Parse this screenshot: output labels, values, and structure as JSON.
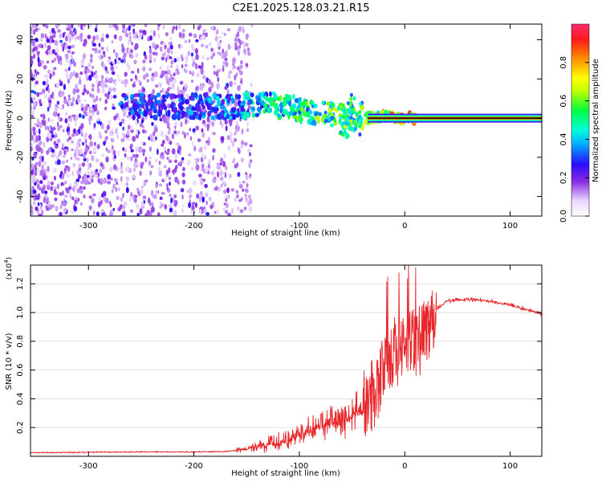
{
  "title": "C2E1.2025.128.03.21.R15",
  "chart_data": [
    {
      "type": "heatmap",
      "title": "",
      "xlabel": "Height of straight line (km)",
      "ylabel": "Frequency (Hz)",
      "xlim": [
        -355,
        130
      ],
      "ylim": [
        -50,
        48
      ],
      "x_ticks": [
        -300,
        -200,
        -100,
        0,
        100
      ],
      "y_ticks": [
        -40,
        -20,
        0,
        20,
        40
      ],
      "x_tick_labels": [
        "-300",
        "-200",
        "-100",
        "0",
        "100"
      ],
      "y_tick_labels": [
        "-40",
        "-20",
        "0",
        "20",
        "40"
      ],
      "colorbar": {
        "label": "Normalized spectral amplitude",
        "range": [
          0,
          1
        ],
        "ticks": [
          0.0,
          0.2,
          0.4,
          0.6,
          0.8
        ],
        "tick_labels": [
          "0.0",
          "0.2",
          "0.4",
          "0.6",
          "0.8"
        ]
      },
      "signal_track": [
        {
          "x": -270,
          "freq": 6,
          "amp": 0.35
        },
        {
          "x": -240,
          "freq": 6,
          "amp": 0.3
        },
        {
          "x": -200,
          "freq": 6,
          "amp": 0.35
        },
        {
          "x": -160,
          "freq": 6,
          "amp": 0.4
        },
        {
          "x": -130,
          "freq": 7,
          "amp": 0.5
        },
        {
          "x": -110,
          "freq": 6,
          "amp": 0.55
        },
        {
          "x": -90,
          "freq": 3,
          "amp": 0.55
        },
        {
          "x": -70,
          "freq": 2,
          "amp": 0.6
        },
        {
          "x": -50,
          "freq": 0,
          "amp": 0.6
        },
        {
          "x": -35,
          "freq": 0,
          "amp": 0.65
        },
        {
          "x": -20,
          "freq": 1,
          "amp": 0.85
        },
        {
          "x": 0,
          "freq": 0,
          "amp": 0.9
        },
        {
          "x": 130,
          "freq": 0,
          "amp": 0.95
        }
      ]
    },
    {
      "type": "line",
      "title": "",
      "xlabel": "Height of straight line (km)",
      "ylabel": "SNR (10 * v/v)",
      "scale_label": "(x10",
      "scale_exponent": "4",
      "xlim": [
        -355,
        130
      ],
      "ylim": [
        0,
        13300
      ],
      "x_ticks": [
        -300,
        -200,
        -100,
        0,
        100
      ],
      "y_ticks": [
        2000,
        4000,
        6000,
        8000,
        10000,
        12000
      ],
      "x_tick_labels": [
        "-300",
        "-200",
        "-100",
        "0",
        "100"
      ],
      "y_tick_labels": [
        "0.2",
        "0.4",
        "0.6",
        "0.8",
        "1.0",
        "1.2"
      ],
      "series": [
        {
          "name": "SNR",
          "color": "#e8262a",
          "x": [
            -355,
            -300,
            -250,
            -200,
            -170,
            -150,
            -120,
            -100,
            -80,
            -60,
            -40,
            -30,
            -20,
            -10,
            0,
            10,
            20,
            30,
            40,
            60,
            80,
            100,
            120,
            130
          ],
          "values": [
            250,
            280,
            300,
            300,
            330,
            500,
            900,
            1400,
            2000,
            2400,
            3000,
            4200,
            5800,
            7000,
            7200,
            7500,
            8500,
            10200,
            10800,
            10900,
            10800,
            10500,
            10100,
            9900
          ]
        }
      ]
    }
  ]
}
